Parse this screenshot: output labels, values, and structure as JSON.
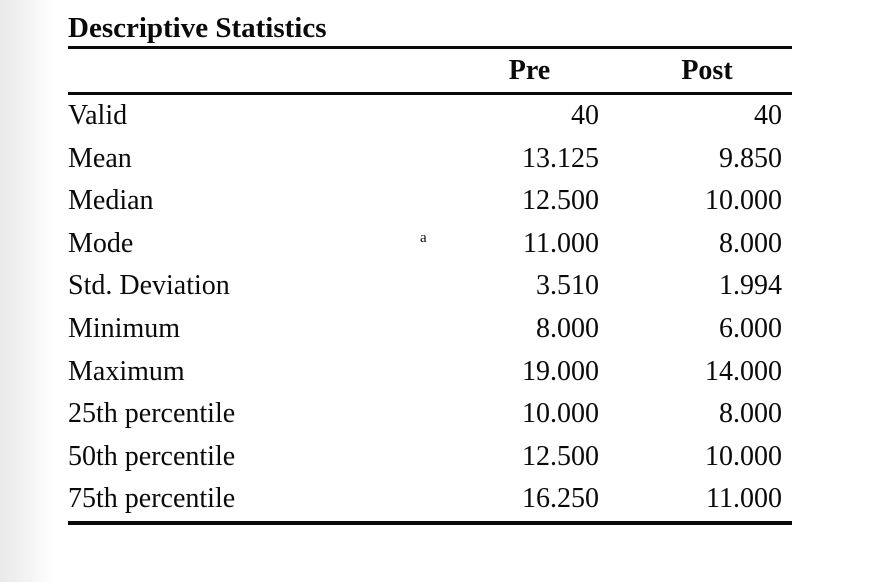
{
  "table": {
    "title": "Descriptive Statistics",
    "columns": {
      "pre": "Pre",
      "post": "Post"
    },
    "footnote_marker": "a",
    "rows": [
      {
        "label": "Valid",
        "pre": "40",
        "post": "40"
      },
      {
        "label": "Mean",
        "pre": "13.125",
        "post": "9.850"
      },
      {
        "label": "Median",
        "pre": "12.500",
        "post": "10.000"
      },
      {
        "label": "Mode",
        "sup": "a",
        "pre": "11.000",
        "post": "8.000"
      },
      {
        "label": "Std. Deviation",
        "pre": "3.510",
        "post": "1.994"
      },
      {
        "label": "Minimum",
        "pre": "8.000",
        "post": "6.000"
      },
      {
        "label": "Maximum",
        "pre": "19.000",
        "post": "14.000"
      },
      {
        "label": "25th percentile",
        "pre": "10.000",
        "post": "8.000"
      },
      {
        "label": "50th percentile",
        "pre": "12.500",
        "post": "10.000"
      },
      {
        "label": "75th percentile",
        "pre": "16.250",
        "post": "11.000"
      }
    ]
  }
}
